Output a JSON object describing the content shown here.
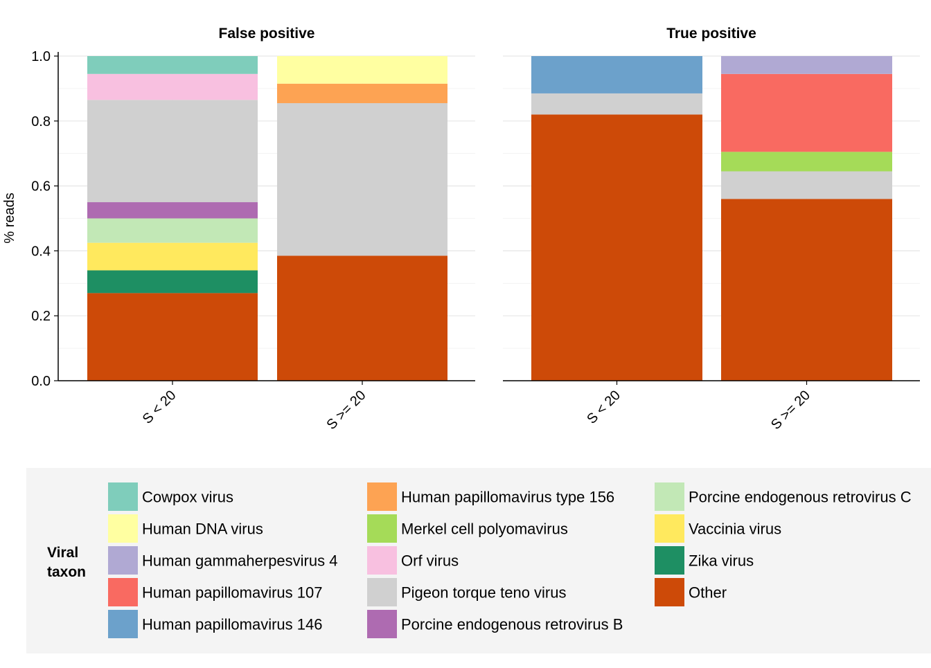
{
  "chart_data": {
    "type": "bar",
    "stacked": true,
    "facets": [
      "False positive",
      "True positive"
    ],
    "categories": [
      "S < 20",
      "S >= 20"
    ],
    "ylabel": "% reads",
    "xlabel": "",
    "ylim": [
      0,
      1
    ],
    "yticks": [
      0.0,
      0.2,
      0.4,
      0.6,
      0.8,
      1.0
    ],
    "yticklabels": [
      "0.0",
      "0.2",
      "0.4",
      "0.6",
      "0.8",
      "1.0"
    ],
    "grid": true,
    "legend": {
      "title": "Viral taxon",
      "position": "bottom",
      "entries": [
        "Cowpox virus",
        "Human DNA virus",
        "Human gammaherpesvirus 4",
        "Human papillomavirus 107",
        "Human papillomavirus 146",
        "Human papillomavirus type 156",
        "Merkel cell polyomavirus",
        "Orf virus",
        "Pigeon torque teno virus",
        "Porcine endogenous retrovirus B",
        "Porcine endogenous retrovirus C",
        "Vaccinia virus",
        "Zika virus",
        "Other"
      ]
    },
    "colors": {
      "Cowpox virus": "#7fcdbb",
      "Human DNA virus": "#ffffa1",
      "Human gammaherpesvirus 4": "#b0a9d3",
      "Human papillomavirus 107": "#f96a61",
      "Human papillomavirus 146": "#6ca1cb",
      "Human papillomavirus type 156": "#fda353",
      "Merkel cell polyomavirus": "#a5db58",
      "Orf virus": "#f8c0e0",
      "Pigeon torque teno virus": "#d0d0d0",
      "Porcine endogenous retrovirus B": "#ae6bb1",
      "Porcine endogenous retrovirus C": "#c2e8b6",
      "Vaccinia virus": "#ffe95e",
      "Zika virus": "#1e8f63",
      "Other": "#cd4a08"
    },
    "bars": [
      {
        "facet": "False positive",
        "category": "S < 20",
        "segments": [
          {
            "taxon": "Other",
            "value": 0.27
          },
          {
            "taxon": "Zika virus",
            "value": 0.07
          },
          {
            "taxon": "Vaccinia virus",
            "value": 0.085
          },
          {
            "taxon": "Porcine endogenous retrovirus C",
            "value": 0.075
          },
          {
            "taxon": "Porcine endogenous retrovirus B",
            "value": 0.05
          },
          {
            "taxon": "Pigeon torque teno virus",
            "value": 0.315
          },
          {
            "taxon": "Orf virus",
            "value": 0.08
          },
          {
            "taxon": "Cowpox virus",
            "value": 0.055
          }
        ]
      },
      {
        "facet": "False positive",
        "category": "S >= 20",
        "segments": [
          {
            "taxon": "Other",
            "value": 0.385
          },
          {
            "taxon": "Pigeon torque teno virus",
            "value": 0.47
          },
          {
            "taxon": "Human papillomavirus type 156",
            "value": 0.06
          },
          {
            "taxon": "Human DNA virus",
            "value": 0.085
          }
        ]
      },
      {
        "facet": "True positive",
        "category": "S < 20",
        "segments": [
          {
            "taxon": "Other",
            "value": 0.82
          },
          {
            "taxon": "Pigeon torque teno virus",
            "value": 0.065
          },
          {
            "taxon": "Human papillomavirus 146",
            "value": 0.115
          }
        ]
      },
      {
        "facet": "True positive",
        "category": "S >= 20",
        "segments": [
          {
            "taxon": "Other",
            "value": 0.56
          },
          {
            "taxon": "Pigeon torque teno virus",
            "value": 0.085
          },
          {
            "taxon": "Merkel cell polyomavirus",
            "value": 0.06
          },
          {
            "taxon": "Human papillomavirus 107",
            "value": 0.24
          },
          {
            "taxon": "Human gammaherpesvirus 4",
            "value": 0.055
          }
        ]
      }
    ]
  }
}
